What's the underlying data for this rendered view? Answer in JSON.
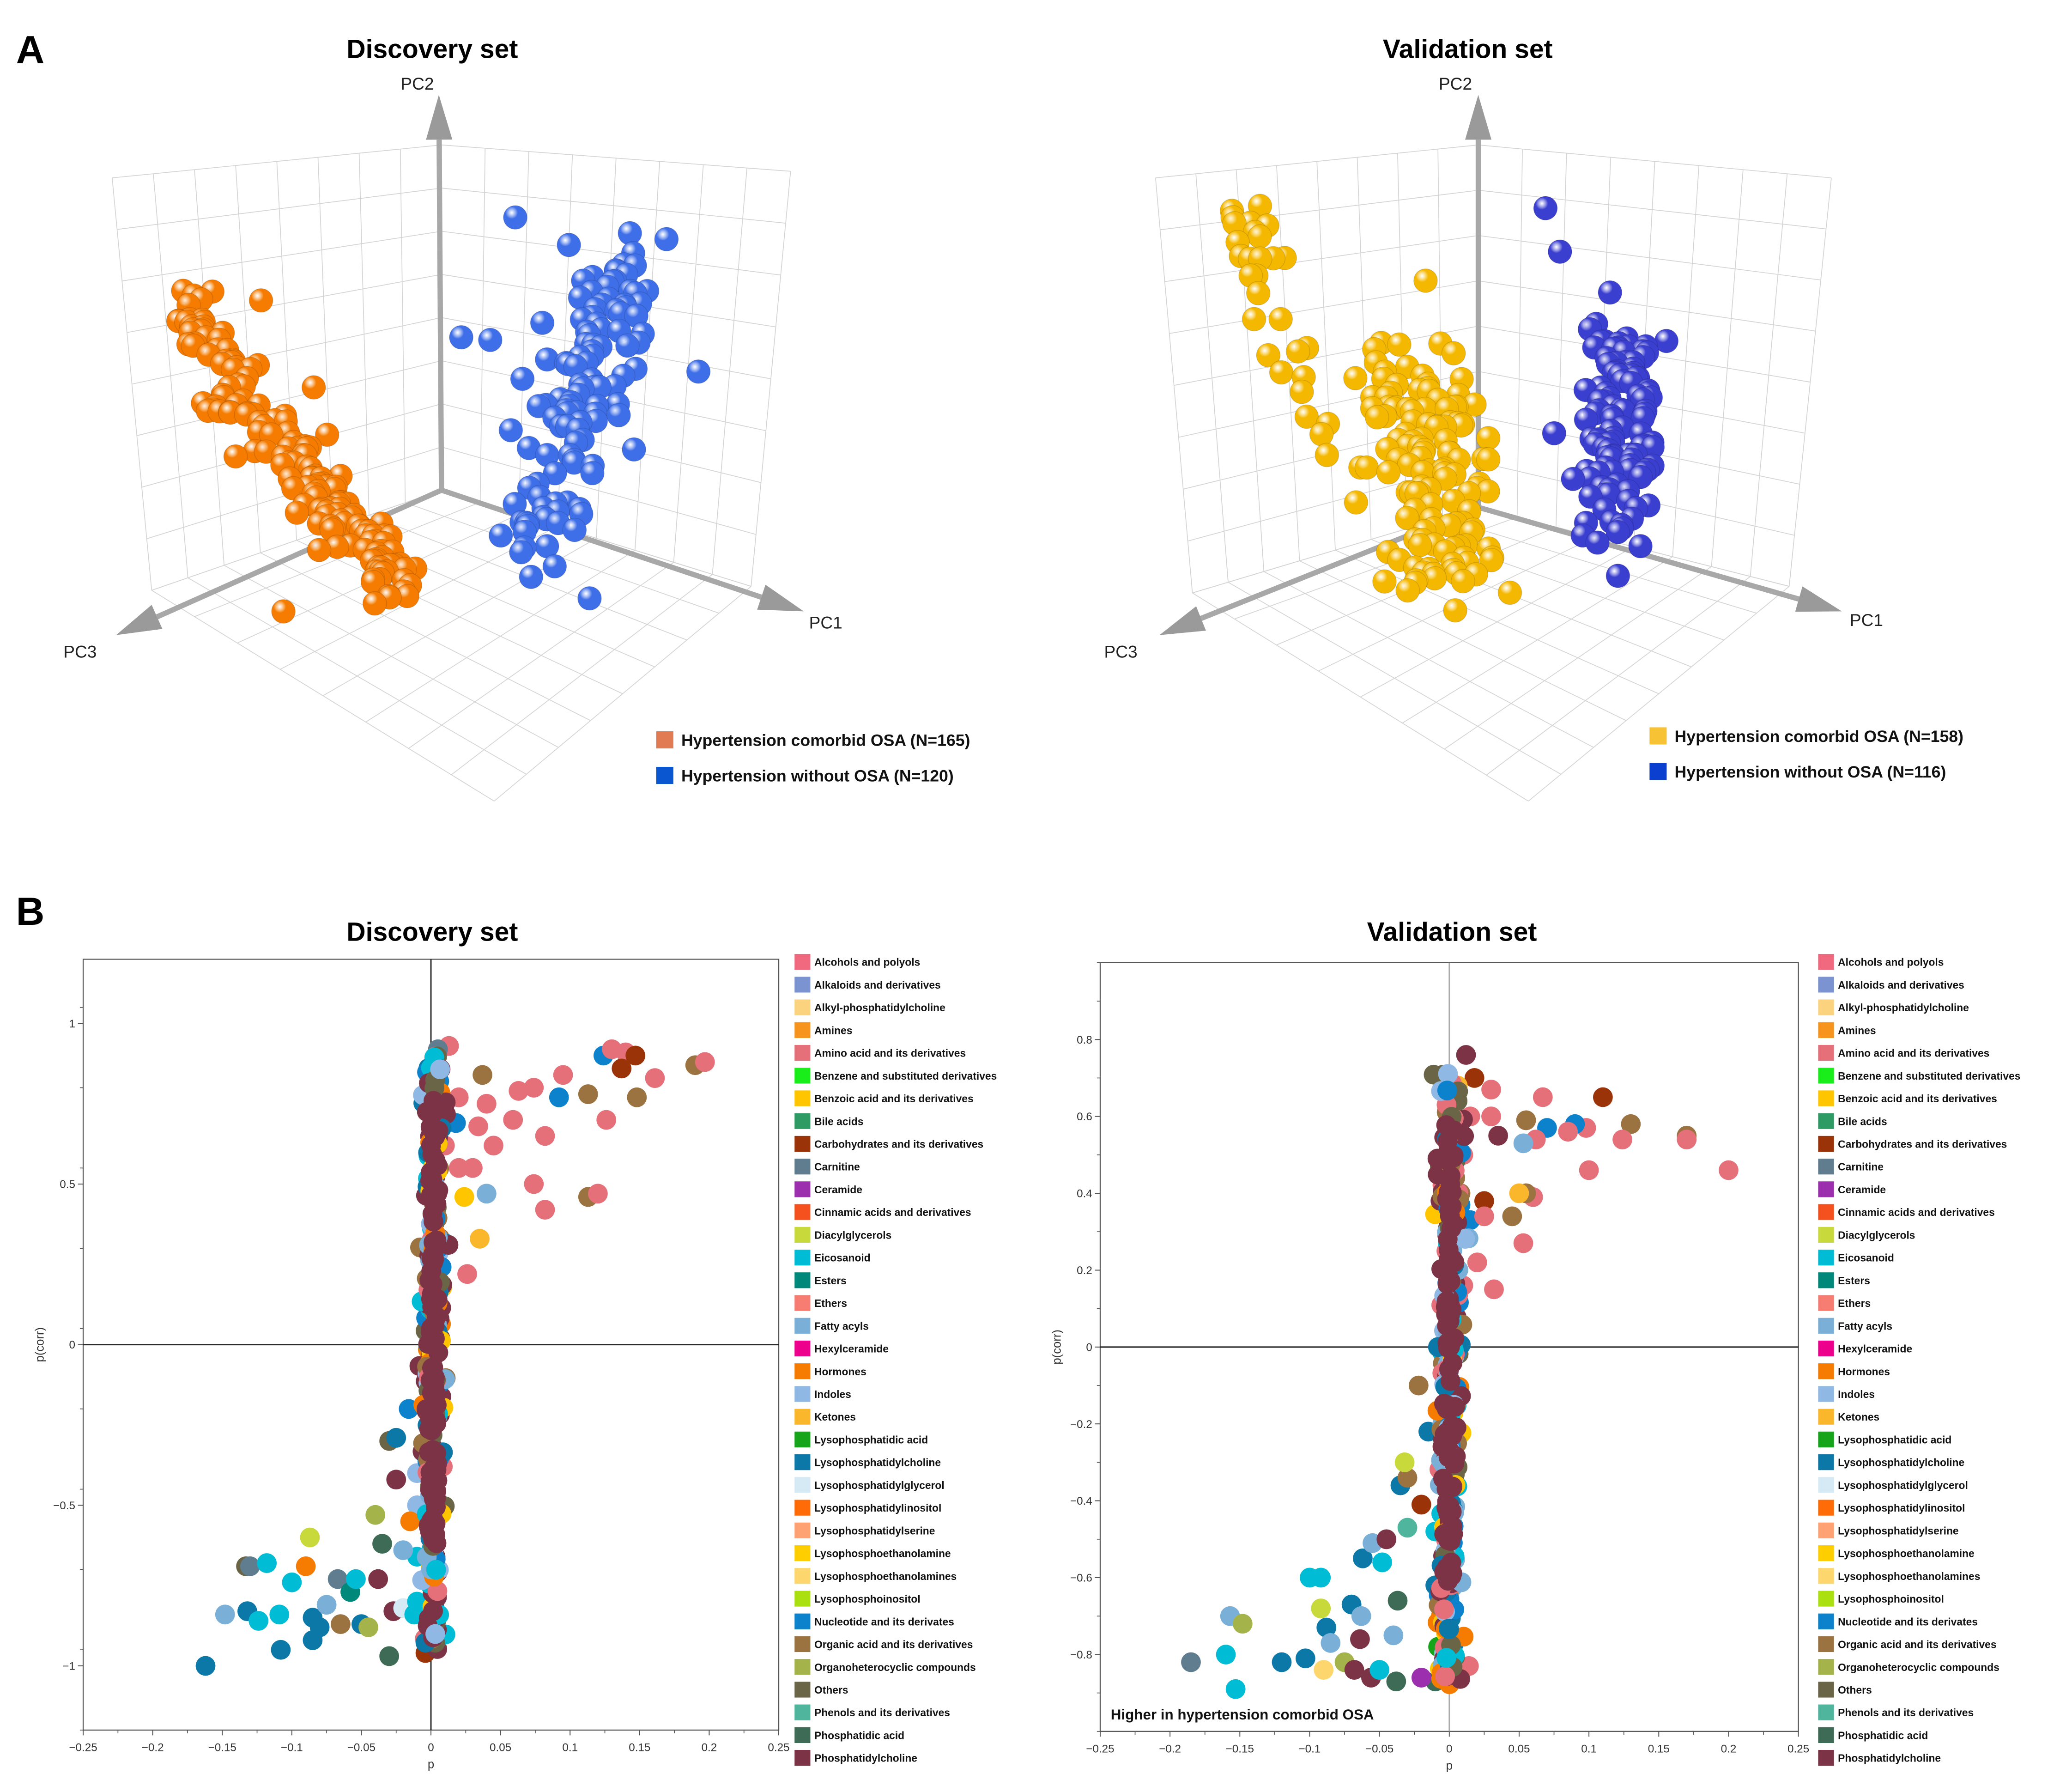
{
  "figure": {
    "panel_a_label": "A",
    "panel_b_label": "B"
  },
  "legend_classes": [
    {
      "name": "Alcohols and polyols",
      "color": "#f0697f"
    },
    {
      "name": "Alkaloids and derivatives",
      "color": "#7b93d0"
    },
    {
      "name": "Alkyl-phosphatidylcholine",
      "color": "#fbd37e"
    },
    {
      "name": "Amines",
      "color": "#f7941d"
    },
    {
      "name": "Amino acid and its derivatives",
      "color": "#e5707a"
    },
    {
      "name": "Benzene and substituted derivatives",
      "color": "#1aee1a"
    },
    {
      "name": "Benzoic acid and its derivatives",
      "color": "#ffc600"
    },
    {
      "name": "Bile acids",
      "color": "#2e9a64"
    },
    {
      "name": "Carbohydrates and its derivatives",
      "color": "#9b3308"
    },
    {
      "name": "Carnitine",
      "color": "#5f7d8e"
    },
    {
      "name": "Ceramide",
      "color": "#9b2fae"
    },
    {
      "name": "Cinnamic acids and derivatives",
      "color": "#f4511e"
    },
    {
      "name": "Diacylglycerols",
      "color": "#c7d93b"
    },
    {
      "name": "Eicosanoid",
      "color": "#00bcd4"
    },
    {
      "name": "Esters",
      "color": "#00897b"
    },
    {
      "name": "Ethers",
      "color": "#f77c72"
    },
    {
      "name": "Fatty acyls",
      "color": "#7ab0d8"
    },
    {
      "name": "Hexylceramide",
      "color": "#ec008c"
    },
    {
      "name": "Hormones",
      "color": "#f57c00"
    },
    {
      "name": "Indoles",
      "color": "#90b8e4"
    },
    {
      "name": "Ketones",
      "color": "#fbb72c"
    },
    {
      "name": "Lysophosphatidic acid",
      "color": "#16a51a"
    },
    {
      "name": "Lysophosphatidylcholine",
      "color": "#0b78a8"
    },
    {
      "name": "Lysophosphatidylglycerol",
      "color": "#d5eaf5"
    },
    {
      "name": "Lysophosphatidylinositol",
      "color": "#fe6b07"
    },
    {
      "name": "Lysophosphatidylserine",
      "color": "#fea273"
    },
    {
      "name": "Lysophosphoethanolamine",
      "color": "#ffce00"
    },
    {
      "name": "Lysophosphoethanolamines",
      "color": "#fdd66e"
    },
    {
      "name": "Lysophosphoinositol",
      "color": "#abe010"
    },
    {
      "name": "Nucleotide and its derivates",
      "color": "#0d82cc"
    },
    {
      "name": "Organic acid and its derivatives",
      "color": "#9b7341"
    },
    {
      "name": "Organoheterocyclic compounds",
      "color": "#a4b34a"
    },
    {
      "name": "Others",
      "color": "#6b6548"
    },
    {
      "name": "Phenols and its derivatives",
      "color": "#4fb59c"
    },
    {
      "name": "Phosphatidic acid",
      "color": "#3e6b56"
    },
    {
      "name": "Phosphatidylcholine",
      "color": "#7b3345"
    }
  ],
  "chart_data": [
    {
      "type": "scatter3d",
      "title": "Discovery set",
      "axes": {
        "x": "PC1",
        "y": "PC2",
        "z": "PC3"
      },
      "groups": [
        {
          "label": "Hypertension comorbid OSA  (N=165)",
          "n": 165,
          "legend_color": "#e07b53",
          "point_color": "#f57c00"
        },
        {
          "label": "Hypertension without OSA  (N=120)",
          "n": 120,
          "legend_color": "#0a56d0",
          "point_color": "#3f6fe8"
        }
      ]
    },
    {
      "type": "scatter3d",
      "title": "Validation set",
      "axes": {
        "x": "PC1",
        "y": "PC2",
        "z": "PC3"
      },
      "groups": [
        {
          "label": "Hypertension comorbid OSA  (N=158)",
          "n": 158,
          "legend_color": "#f7c234",
          "point_color": "#f5b800"
        },
        {
          "label": "Hypertension without OSA  (N=116)",
          "n": 116,
          "legend_color": "#0b3fd0",
          "point_color": "#3b3fd0"
        }
      ]
    },
    {
      "type": "scatter",
      "title": "Discovery set",
      "xlabel": "p",
      "ylabel": "p(corr)",
      "xlim": [
        -0.25,
        0.25
      ],
      "ylim": [
        -1.2,
        1.2
      ],
      "xticks": [
        -0.25,
        -0.2,
        -0.15,
        -0.1,
        -0.05,
        0,
        0.05,
        0.1,
        0.15,
        0.2,
        0.25
      ],
      "xtick_labels": [
        "−0.25",
        "−0.2",
        "−0.15",
        "−0.1",
        "−0.05",
        "0",
        "0.05",
        "0.1",
        "0.15",
        "0.2",
        "0.25"
      ],
      "yticks": [
        -1,
        -0.5,
        0,
        0.5,
        1
      ],
      "ytick_labels": [
        "−1",
        "−0.5",
        "0",
        "0.5",
        "1"
      ],
      "annotation": "",
      "spine": {
        "p_center": 0.002,
        "p_spread": 0.004,
        "pcorr_range": [
          -0.95,
          0.9
        ],
        "count": 260
      },
      "points": [
        [
          0.124,
          0.9,
          29
        ],
        [
          0.13,
          0.92,
          4
        ],
        [
          0.14,
          0.91,
          4
        ],
        [
          0.147,
          0.9,
          8
        ],
        [
          0.137,
          0.86,
          8
        ],
        [
          0.19,
          0.87,
          30
        ],
        [
          0.197,
          0.88,
          4
        ],
        [
          0.161,
          0.83,
          4
        ],
        [
          0.148,
          0.77,
          30
        ],
        [
          0.113,
          0.78,
          30
        ],
        [
          0.092,
          0.77,
          29
        ],
        [
          0.095,
          0.84,
          4
        ],
        [
          0.126,
          0.7,
          4
        ],
        [
          0.082,
          0.65,
          4
        ],
        [
          0.074,
          0.5,
          4
        ],
        [
          0.082,
          0.42,
          4
        ],
        [
          0.113,
          0.46,
          30
        ],
        [
          0.12,
          0.47,
          4
        ],
        [
          0.074,
          0.8,
          4
        ],
        [
          0.063,
          0.79,
          4
        ],
        [
          0.059,
          0.7,
          4
        ],
        [
          0.04,
          0.47,
          16
        ],
        [
          0.035,
          0.33,
          20
        ],
        [
          0.026,
          0.22,
          4
        ],
        [
          0.024,
          0.46,
          6
        ],
        [
          0.02,
          0.55,
          4
        ],
        [
          0.03,
          0.55,
          4
        ],
        [
          0.045,
          0.62,
          4
        ],
        [
          0.04,
          0.75,
          4
        ],
        [
          0.037,
          0.84,
          30
        ],
        [
          0.013,
          0.93,
          4
        ],
        [
          0.005,
          0.92,
          9
        ],
        [
          0.006,
          0.82,
          29
        ],
        [
          0.006,
          0.76,
          3
        ],
        [
          0.018,
          0.69,
          29
        ],
        [
          0.034,
          0.68,
          4
        ],
        [
          0.02,
          0.77,
          4
        ],
        [
          0.01,
          0.62,
          4
        ],
        [
          -0.162,
          -1,
          22
        ],
        [
          -0.148,
          -0.84,
          16
        ],
        [
          -0.133,
          -0.69,
          32
        ],
        [
          -0.13,
          -0.69,
          9
        ],
        [
          -0.118,
          -0.68,
          13
        ],
        [
          -0.132,
          -0.83,
          22
        ],
        [
          -0.124,
          -0.86,
          13
        ],
        [
          -0.108,
          -0.95,
          22
        ],
        [
          -0.109,
          -0.84,
          13
        ],
        [
          -0.1,
          -0.74,
          13
        ],
        [
          -0.087,
          -0.6,
          12
        ],
        [
          -0.09,
          -0.69,
          18
        ],
        [
          -0.085,
          -0.92,
          22
        ],
        [
          -0.085,
          -0.85,
          22
        ],
        [
          -0.08,
          -0.88,
          22
        ],
        [
          -0.075,
          -0.81,
          16
        ],
        [
          -0.065,
          -0.87,
          30
        ],
        [
          -0.067,
          -0.73,
          9
        ],
        [
          -0.058,
          -0.77,
          14
        ],
        [
          -0.054,
          -0.73,
          13
        ],
        [
          -0.05,
          -0.87,
          22
        ],
        [
          -0.045,
          -0.88,
          31
        ],
        [
          -0.03,
          -0.97,
          34
        ],
        [
          -0.027,
          -0.83,
          35
        ],
        [
          -0.038,
          -0.73,
          35
        ],
        [
          -0.02,
          -0.82,
          23
        ],
        [
          -0.01,
          -0.8,
          13
        ],
        [
          -0.012,
          -0.84,
          13
        ],
        [
          -0.004,
          -0.96,
          8
        ],
        [
          -0.04,
          -0.53,
          31
        ],
        [
          -0.035,
          -0.62,
          34
        ],
        [
          -0.025,
          -0.42,
          35
        ],
        [
          -0.03,
          -0.3,
          32
        ],
        [
          -0.025,
          -0.29,
          22
        ],
        [
          -0.016,
          -0.2,
          29
        ],
        [
          -0.01,
          -0.4,
          19
        ],
        [
          -0.01,
          -0.5,
          19
        ],
        [
          -0.01,
          -0.66,
          13
        ],
        [
          -0.015,
          -0.55,
          18
        ],
        [
          -0.02,
          -0.64,
          16
        ]
      ]
    },
    {
      "type": "scatter",
      "title": "Validation set",
      "xlabel": "p",
      "ylabel": "p(corr)",
      "xlim": [
        -0.25,
        0.25
      ],
      "ylim": [
        -1.0,
        1.0
      ],
      "xticks": [
        -0.25,
        -0.2,
        -0.15,
        -0.1,
        -0.05,
        0,
        0.05,
        0.1,
        0.15,
        0.2,
        0.25
      ],
      "xtick_labels": [
        "−0.25",
        "−0.2",
        "−0.15",
        "−0.1",
        "−0.05",
        "0",
        "0.05",
        "0.1",
        "0.15",
        "0.2",
        "0.25"
      ],
      "yticks": [
        -0.8,
        -0.6,
        -0.4,
        -0.2,
        0,
        0.2,
        0.4,
        0.6,
        0.8
      ],
      "ytick_labels": [
        "−0.8",
        "−0.6",
        "−0.4",
        "−0.2",
        "0",
        "0.2",
        "0.4",
        "0.6",
        "0.8"
      ],
      "annotation": "Higher in hypertension comorbid OSA",
      "spine": {
        "p_center": 0.0,
        "p_spread": 0.004,
        "pcorr_range": [
          -0.88,
          0.72
        ],
        "count": 260
      },
      "points": [
        [
          0.2,
          0.46,
          4
        ],
        [
          0.17,
          0.55,
          30
        ],
        [
          0.17,
          0.54,
          4
        ],
        [
          0.13,
          0.58,
          30
        ],
        [
          0.124,
          0.54,
          4
        ],
        [
          0.11,
          0.65,
          8
        ],
        [
          0.1,
          0.46,
          4
        ],
        [
          0.098,
          0.57,
          4
        ],
        [
          0.09,
          0.58,
          29
        ],
        [
          0.085,
          0.56,
          4
        ],
        [
          0.07,
          0.57,
          29
        ],
        [
          0.067,
          0.65,
          4
        ],
        [
          0.062,
          0.54,
          4
        ],
        [
          0.055,
          0.59,
          30
        ],
        [
          0.053,
          0.53,
          16
        ],
        [
          0.06,
          0.39,
          4
        ],
        [
          0.055,
          0.4,
          30
        ],
        [
          0.05,
          0.4,
          20
        ],
        [
          0.045,
          0.34,
          30
        ],
        [
          0.053,
          0.27,
          4
        ],
        [
          0.032,
          0.15,
          4
        ],
        [
          0.02,
          0.22,
          4
        ],
        [
          0.01,
          0.16,
          4
        ],
        [
          0.012,
          0.76,
          35
        ],
        [
          0.018,
          0.7,
          8
        ],
        [
          0.03,
          0.67,
          4
        ],
        [
          0.035,
          0.55,
          35
        ],
        [
          0.03,
          0.6,
          4
        ],
        [
          0.015,
          0.6,
          4
        ],
        [
          0.01,
          0.5,
          4
        ],
        [
          0.025,
          0.38,
          8
        ],
        [
          0.015,
          0.33,
          29
        ],
        [
          0.008,
          0.37,
          29
        ],
        [
          0.025,
          0.34,
          4
        ],
        [
          0.008,
          0.4,
          30
        ],
        [
          0.006,
          0.68,
          20
        ],
        [
          0.004,
          0.07,
          5
        ],
        [
          -0.185,
          -0.82,
          9
        ],
        [
          -0.157,
          -0.7,
          16
        ],
        [
          -0.148,
          -0.72,
          31
        ],
        [
          -0.16,
          -0.8,
          13
        ],
        [
          -0.153,
          -0.89,
          13
        ],
        [
          -0.12,
          -0.82,
          22
        ],
        [
          -0.103,
          -0.81,
          22
        ],
        [
          -0.1,
          -0.6,
          13
        ],
        [
          -0.092,
          -0.6,
          13
        ],
        [
          -0.092,
          -0.68,
          12
        ],
        [
          -0.09,
          -0.84,
          27
        ],
        [
          -0.088,
          -0.73,
          22
        ],
        [
          -0.085,
          -0.77,
          16
        ],
        [
          -0.075,
          -0.82,
          31
        ],
        [
          -0.07,
          -0.67,
          22
        ],
        [
          -0.068,
          -0.84,
          35
        ],
        [
          -0.063,
          -0.7,
          16
        ],
        [
          -0.064,
          -0.76,
          35
        ],
        [
          -0.062,
          -0.55,
          22
        ],
        [
          -0.056,
          -0.86,
          35
        ],
        [
          -0.055,
          -0.51,
          16
        ],
        [
          -0.05,
          -0.84,
          13
        ],
        [
          -0.048,
          -0.56,
          13
        ],
        [
          -0.045,
          -0.5,
          35
        ],
        [
          -0.04,
          -0.75,
          16
        ],
        [
          -0.038,
          -0.87,
          34
        ],
        [
          -0.037,
          -0.66,
          34
        ],
        [
          -0.035,
          -0.36,
          22
        ],
        [
          -0.03,
          -0.47,
          33
        ],
        [
          -0.03,
          -0.34,
          30
        ],
        [
          -0.032,
          -0.3,
          12
        ],
        [
          -0.02,
          -0.41,
          8
        ],
        [
          -0.022,
          -0.1,
          30
        ],
        [
          -0.015,
          -0.22,
          22
        ],
        [
          -0.01,
          -0.48,
          13
        ],
        [
          -0.01,
          -0.62,
          22
        ],
        [
          -0.01,
          -0.87,
          34
        ],
        [
          -0.008,
          -0.78,
          21
        ],
        [
          -0.006,
          -0.7,
          18
        ],
        [
          -0.006,
          -0.67,
          29
        ],
        [
          -0.004,
          -0.32,
          16
        ],
        [
          -0.005,
          -0.2,
          16
        ],
        [
          -0.005,
          -0.17,
          13
        ],
        [
          -0.003,
          -0.43,
          13
        ],
        [
          -0.005,
          -0.83,
          35
        ],
        [
          -0.02,
          -0.86,
          10
        ]
      ]
    }
  ]
}
